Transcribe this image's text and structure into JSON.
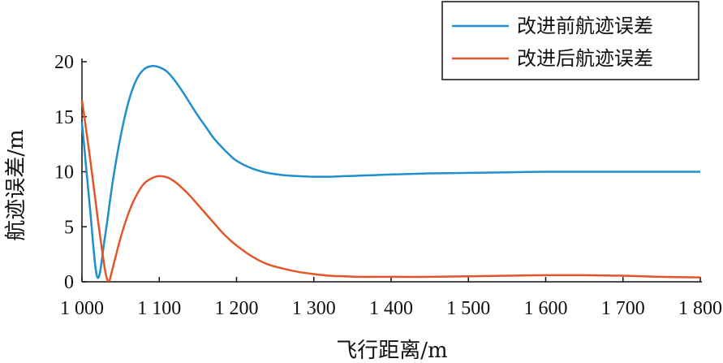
{
  "chart_data": {
    "type": "line",
    "xlabel": "飞行距离/m",
    "ylabel": "航迹误差/m",
    "xlim": [
      1000,
      1800
    ],
    "ylim": [
      0,
      20
    ],
    "x_ticks": [
      1000,
      1100,
      1200,
      1300,
      1400,
      1500,
      1600,
      1700,
      1800
    ],
    "x_tick_labels": [
      "1 000",
      "1 100",
      "1 200",
      "1 300",
      "1 400",
      "1 500",
      "1 600",
      "1 700",
      "1 800"
    ],
    "y_ticks": [
      0,
      5,
      10,
      15,
      20
    ],
    "y_tick_labels": [
      "0",
      "5",
      "10",
      "15",
      "20"
    ],
    "grid": false,
    "legend_position": "top-right",
    "series": [
      {
        "name": "改进前航迹误差",
        "color": "#1f8fce",
        "x": [
          1000,
          1010,
          1020,
          1030,
          1040,
          1050,
          1060,
          1070,
          1080,
          1090,
          1100,
          1110,
          1120,
          1130,
          1140,
          1150,
          1160,
          1170,
          1180,
          1190,
          1200,
          1220,
          1240,
          1260,
          1280,
          1300,
          1320,
          1340,
          1360,
          1380,
          1400,
          1450,
          1500,
          1550,
          1600,
          1650,
          1700,
          1750,
          1800
        ],
        "y": [
          14.5,
          7.0,
          0.4,
          4.2,
          9.2,
          13.2,
          16.3,
          18.3,
          19.3,
          19.6,
          19.5,
          19.1,
          18.3,
          17.3,
          16.2,
          15.1,
          14.1,
          13.1,
          12.3,
          11.6,
          11.0,
          10.3,
          9.9,
          9.7,
          9.6,
          9.55,
          9.55,
          9.6,
          9.65,
          9.7,
          9.75,
          9.85,
          9.9,
          9.95,
          10.0,
          10.0,
          10.0,
          10.0,
          10.0
        ]
      },
      {
        "name": "改进后航迹误差",
        "color": "#e2562a",
        "x": [
          1000,
          1010,
          1020,
          1030,
          1035,
          1040,
          1050,
          1060,
          1070,
          1080,
          1090,
          1100,
          1110,
          1120,
          1130,
          1140,
          1150,
          1160,
          1170,
          1180,
          1190,
          1200,
          1220,
          1240,
          1260,
          1280,
          1300,
          1320,
          1340,
          1360,
          1380,
          1400,
          1450,
          1500,
          1550,
          1600,
          1650,
          1700,
          1750,
          1800
        ],
        "y": [
          16.5,
          11.5,
          6.0,
          1.0,
          0.1,
          1.3,
          4.0,
          6.2,
          7.8,
          8.9,
          9.4,
          9.6,
          9.5,
          9.1,
          8.5,
          7.8,
          7.0,
          6.2,
          5.4,
          4.6,
          3.9,
          3.3,
          2.3,
          1.6,
          1.2,
          0.9,
          0.7,
          0.55,
          0.5,
          0.45,
          0.45,
          0.45,
          0.45,
          0.5,
          0.55,
          0.6,
          0.6,
          0.55,
          0.45,
          0.4
        ]
      }
    ]
  }
}
